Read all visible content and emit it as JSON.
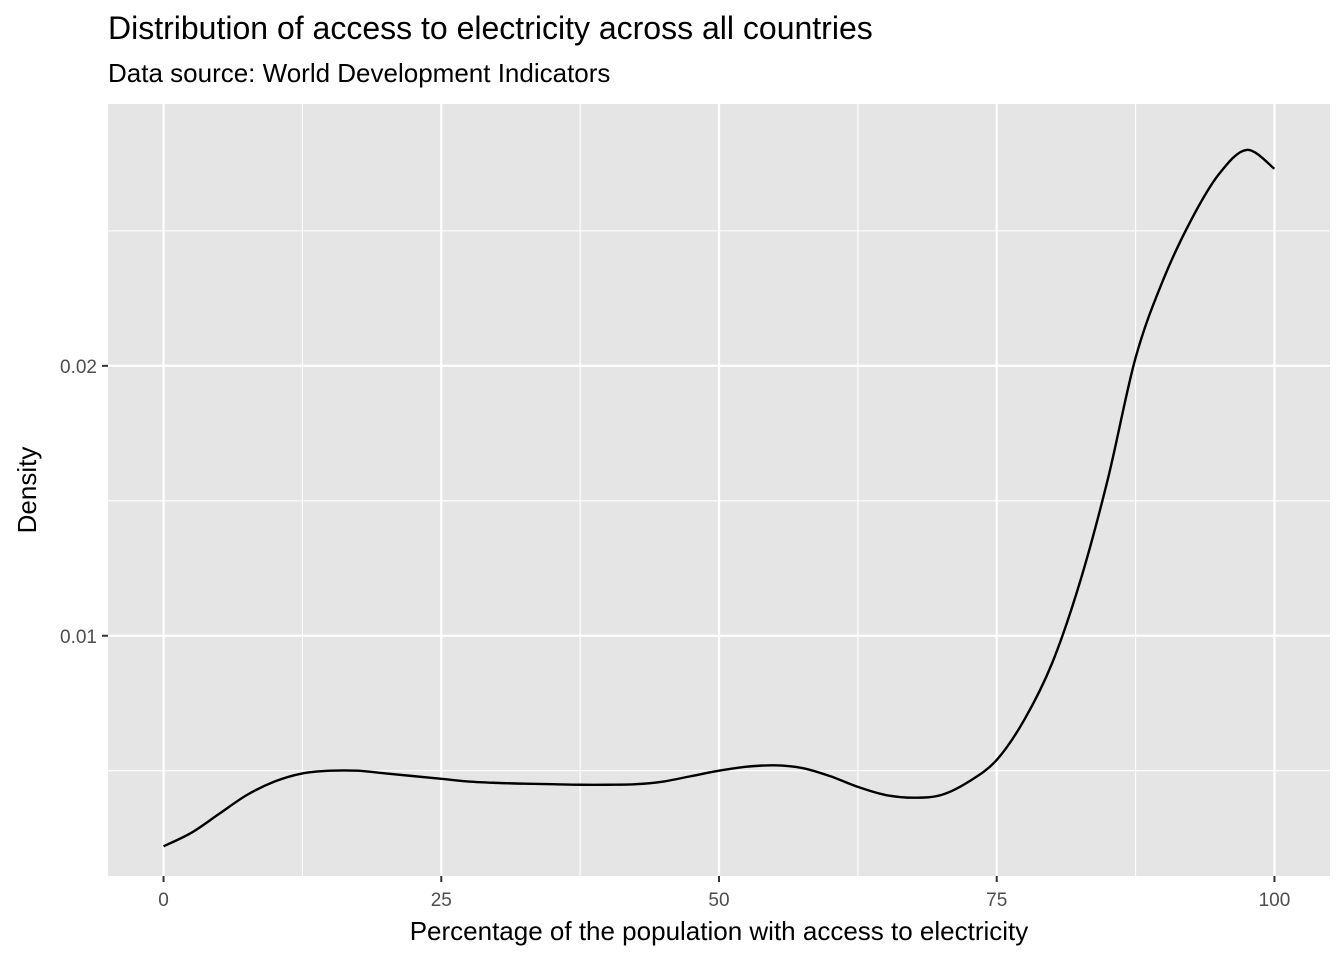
{
  "chart_data": {
    "type": "area",
    "title": "Distribution of access to electricity across all countries",
    "subtitle": "Data source: World Development Indicators",
    "xlabel": "Percentage of the population with access to electricity",
    "ylabel": "Density",
    "xlim": [
      -5,
      105
    ],
    "ylim": [
      0.0011,
      0.0297
    ],
    "x_ticks": [
      0,
      25,
      50,
      75,
      100
    ],
    "y_ticks": [
      0.01,
      0.02
    ],
    "x_tick_labels": [
      "0",
      "25",
      "50",
      "75",
      "100"
    ],
    "y_tick_labels": [
      "0.01",
      "0.02"
    ],
    "grid": true,
    "panel_background": "#e5e5e5",
    "grid_color": "#ffffff",
    "line_color": "#000000",
    "series": [
      {
        "x": [
          0,
          2.5,
          5,
          7.5,
          10,
          12.5,
          15,
          17.5,
          20,
          22.5,
          25,
          27.5,
          30,
          32.5,
          35,
          37.5,
          40,
          42.5,
          45,
          47.5,
          50,
          52.5,
          55,
          57.5,
          60,
          62.5,
          65,
          67.5,
          70,
          72.5,
          75,
          77.5,
          80,
          82.5,
          85,
          87.5,
          90,
          92.5,
          95,
          97.5,
          100
        ],
        "y": [
          0.0022,
          0.0027,
          0.0034,
          0.0041,
          0.0046,
          0.0049,
          0.005,
          0.005,
          0.0049,
          0.0048,
          0.0047,
          0.0046,
          0.00455,
          0.00452,
          0.0045,
          0.00448,
          0.00448,
          0.0045,
          0.0046,
          0.0048,
          0.005,
          0.00515,
          0.0052,
          0.0051,
          0.0048,
          0.0044,
          0.0041,
          0.004,
          0.0041,
          0.0046,
          0.0054,
          0.0069,
          0.009,
          0.012,
          0.0158,
          0.0203,
          0.0232,
          0.0254,
          0.0271,
          0.028,
          0.0273
        ]
      }
    ]
  }
}
